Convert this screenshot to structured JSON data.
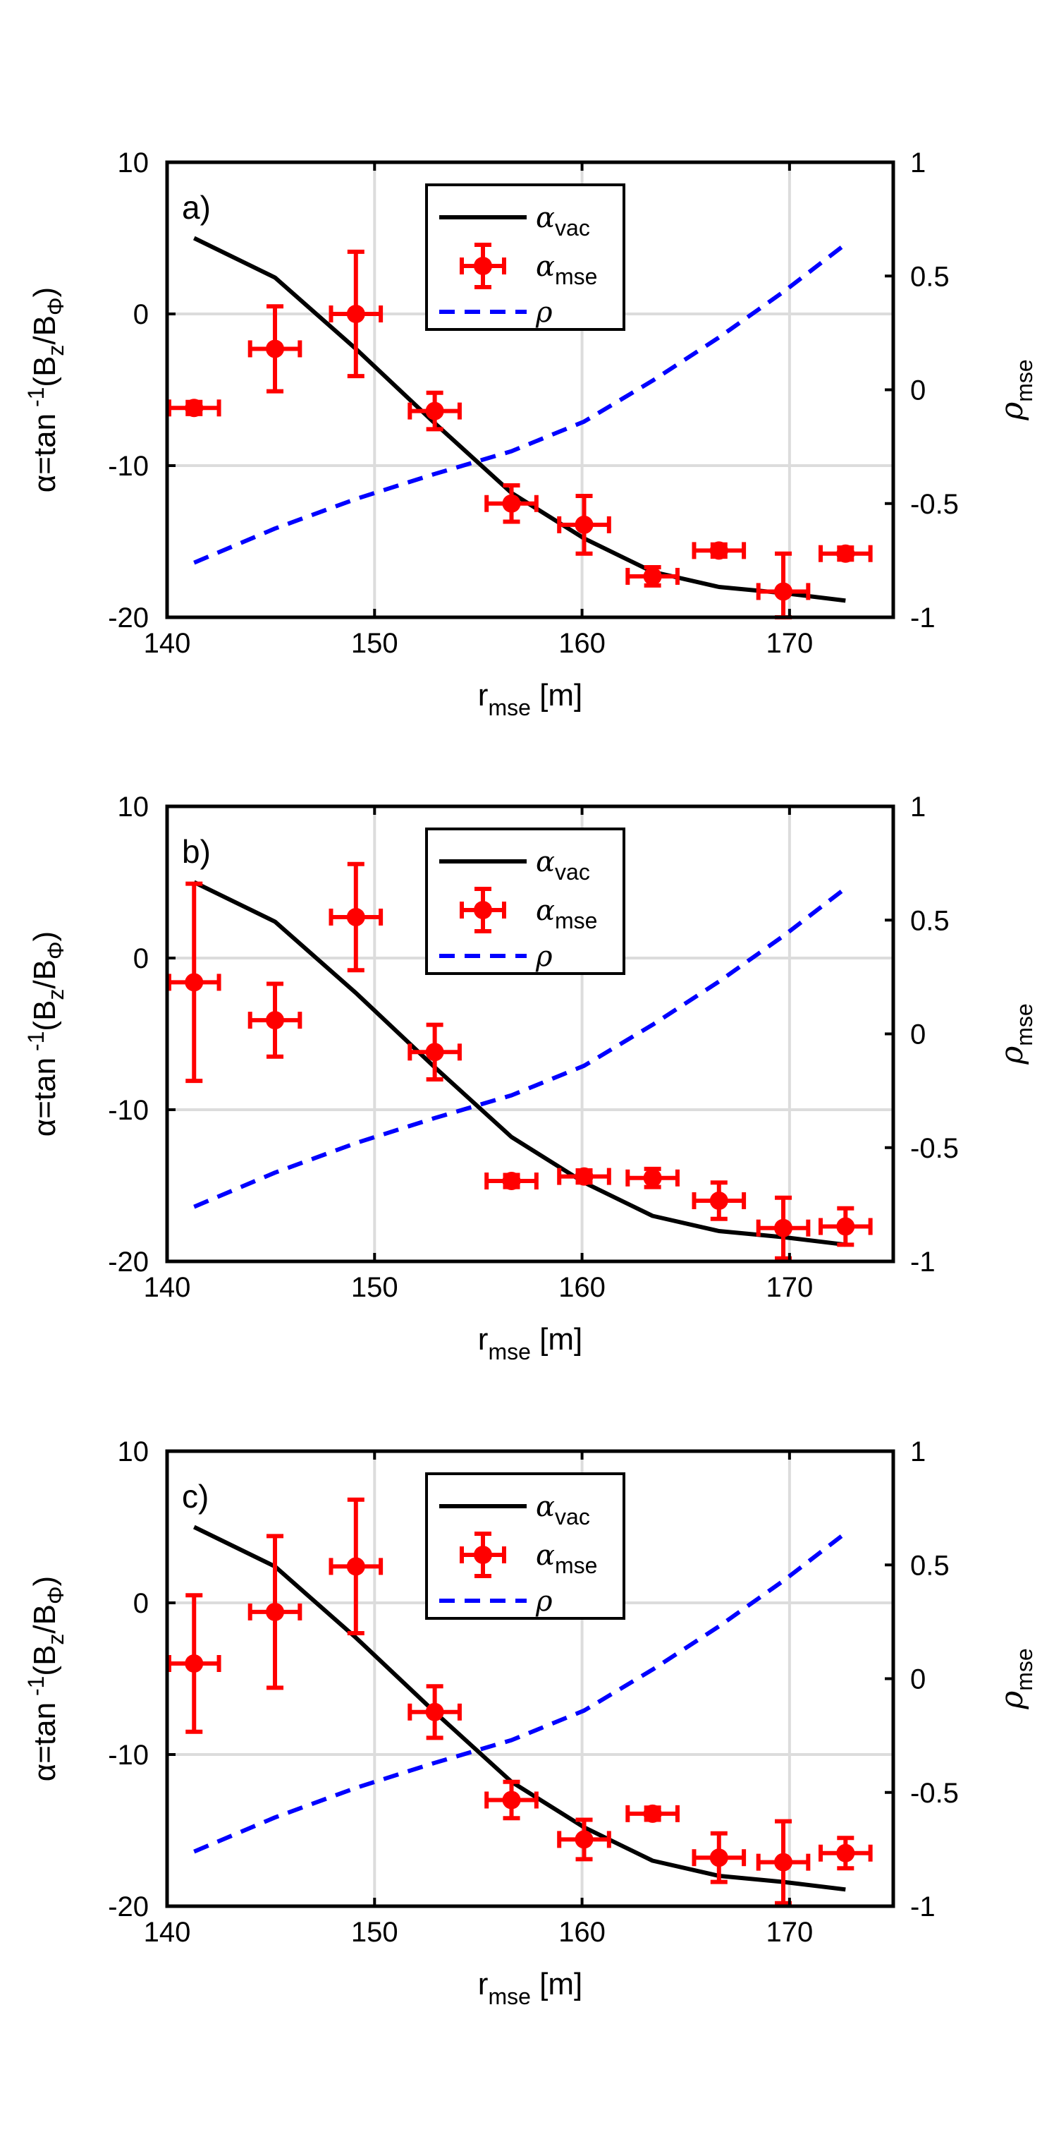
{
  "chart_data": [
    {
      "type": "line",
      "panel_label": "a)",
      "xlabel": {
        "base": "r",
        "sub": "mse",
        "unit": "[m]"
      },
      "ylabel_left": {
        "prefix": "α=tan",
        "exp": "-1",
        "open": "(B",
        "sub1": "z",
        "slash": "/B",
        "sub2": "Φ",
        "close": ")"
      },
      "ylabel_right": {
        "base": "ρ",
        "sub": "mse"
      },
      "xlim": [
        140,
        175
      ],
      "ylim_left": [
        -20,
        10
      ],
      "ylim_right": [
        -1,
        1
      ],
      "xticks": [
        140,
        150,
        160,
        170
      ],
      "yticks_left": [
        10,
        0,
        -10,
        -20
      ],
      "yticks_right": [
        "1",
        "0.5",
        "0",
        "-0.5",
        "-1"
      ],
      "grid": true,
      "legend": {
        "position": "top-center",
        "entries": [
          {
            "base": "α",
            "sub": "vac"
          },
          {
            "base": "α",
            "sub": "mse"
          },
          {
            "base": "ρ",
            "sub": ""
          }
        ]
      },
      "series": [
        {
          "name": "alpha_vac",
          "style": "solid",
          "color": "#000000",
          "axis": "left",
          "x": [
            141.3,
            145.2,
            149.1,
            152.9,
            156.6,
            160.1,
            163.4,
            166.6,
            169.7,
            172.7
          ],
          "y": [
            5.0,
            2.4,
            -2.3,
            -7.2,
            -11.8,
            -14.8,
            -17.0,
            -18.0,
            -18.4,
            -18.9
          ]
        },
        {
          "name": "alpha_mse",
          "style": "errorbar",
          "color": "#ff0000",
          "axis": "left",
          "x": [
            141.3,
            145.2,
            149.1,
            152.9,
            156.6,
            160.1,
            163.4,
            166.6,
            169.7,
            172.7
          ],
          "y": [
            -6.2,
            -2.3,
            0.0,
            -6.4,
            -12.5,
            -13.9,
            -17.3,
            -15.6,
            -18.3,
            -15.8
          ],
          "yerr": [
            0.4,
            2.8,
            4.1,
            1.2,
            1.2,
            1.9,
            0.6,
            0.4,
            2.5,
            0.4
          ],
          "xerr": 1.2
        },
        {
          "name": "rho",
          "style": "dashed",
          "color": "#0000ff",
          "axis": "right",
          "x": [
            141.3,
            145.2,
            149.1,
            152.9,
            156.6,
            160.1,
            163.4,
            166.6,
            169.7,
            172.7
          ],
          "y": [
            -0.76,
            -0.61,
            -0.48,
            -0.37,
            -0.27,
            -0.14,
            0.04,
            0.23,
            0.43,
            0.64
          ]
        }
      ]
    },
    {
      "type": "line",
      "panel_label": "b)",
      "xlabel": {
        "base": "r",
        "sub": "mse",
        "unit": "[m]"
      },
      "ylabel_left": {
        "prefix": "α=tan",
        "exp": "-1",
        "open": "(B",
        "sub1": "z",
        "slash": "/B",
        "sub2": "Φ",
        "close": ")"
      },
      "ylabel_right": {
        "base": "ρ",
        "sub": "mse"
      },
      "xlim": [
        140,
        175
      ],
      "ylim_left": [
        -20,
        10
      ],
      "ylim_right": [
        -1,
        1
      ],
      "xticks": [
        140,
        150,
        160,
        170
      ],
      "yticks_left": [
        10,
        0,
        -10,
        -20
      ],
      "yticks_right": [
        "1",
        "0.5",
        "0",
        "-0.5",
        "-1"
      ],
      "grid": true,
      "legend": {
        "position": "top-center",
        "entries": [
          {
            "base": "α",
            "sub": "vac"
          },
          {
            "base": "α",
            "sub": "mse"
          },
          {
            "base": "ρ",
            "sub": ""
          }
        ]
      },
      "series": [
        {
          "name": "alpha_vac",
          "style": "solid",
          "color": "#000000",
          "axis": "left",
          "x": [
            141.3,
            145.2,
            149.1,
            152.9,
            156.6,
            160.1,
            163.4,
            166.6,
            169.7,
            172.7
          ],
          "y": [
            5.0,
            2.4,
            -2.3,
            -7.2,
            -11.8,
            -14.8,
            -17.0,
            -18.0,
            -18.4,
            -18.9
          ]
        },
        {
          "name": "alpha_mse",
          "style": "errorbar",
          "color": "#ff0000",
          "axis": "left",
          "x": [
            141.3,
            145.2,
            149.1,
            152.9,
            156.6,
            160.1,
            163.4,
            166.6,
            169.7,
            172.7
          ],
          "y": [
            -1.6,
            -4.1,
            2.7,
            -6.2,
            -14.7,
            -14.4,
            -14.5,
            -16.0,
            -17.8,
            -17.7
          ],
          "yerr": [
            6.5,
            2.4,
            3.5,
            1.8,
            0.4,
            0.4,
            0.6,
            1.2,
            2.0,
            1.2
          ],
          "xerr": 1.2
        },
        {
          "name": "rho",
          "style": "dashed",
          "color": "#0000ff",
          "axis": "right",
          "x": [
            141.3,
            145.2,
            149.1,
            152.9,
            156.6,
            160.1,
            163.4,
            166.6,
            169.7,
            172.7
          ],
          "y": [
            -0.76,
            -0.61,
            -0.48,
            -0.37,
            -0.27,
            -0.14,
            0.04,
            0.23,
            0.43,
            0.64
          ]
        }
      ]
    },
    {
      "type": "line",
      "panel_label": "c)",
      "xlabel": {
        "base": "r",
        "sub": "mse",
        "unit": "[m]"
      },
      "ylabel_left": {
        "prefix": "α=tan",
        "exp": "-1",
        "open": "(B",
        "sub1": "z",
        "slash": "/B",
        "sub2": "Φ",
        "close": ")"
      },
      "ylabel_right": {
        "base": "ρ",
        "sub": "mse"
      },
      "xlim": [
        140,
        175
      ],
      "ylim_left": [
        -20,
        10
      ],
      "ylim_right": [
        -1,
        1
      ],
      "xticks": [
        140,
        150,
        160,
        170
      ],
      "yticks_left": [
        10,
        0,
        -10,
        -20
      ],
      "yticks_right": [
        "1",
        "0.5",
        "0",
        "-0.5",
        "-1"
      ],
      "grid": true,
      "legend": {
        "position": "top-center",
        "entries": [
          {
            "base": "α",
            "sub": "vac"
          },
          {
            "base": "α",
            "sub": "mse"
          },
          {
            "base": "ρ",
            "sub": ""
          }
        ]
      },
      "series": [
        {
          "name": "alpha_vac",
          "style": "solid",
          "color": "#000000",
          "axis": "left",
          "x": [
            141.3,
            145.2,
            149.1,
            152.9,
            156.6,
            160.1,
            163.4,
            166.6,
            169.7,
            172.7
          ],
          "y": [
            5.0,
            2.4,
            -2.3,
            -7.2,
            -11.8,
            -14.8,
            -17.0,
            -18.0,
            -18.4,
            -18.9
          ]
        },
        {
          "name": "alpha_mse",
          "style": "errorbar",
          "color": "#ff0000",
          "axis": "left",
          "x": [
            141.3,
            145.2,
            149.1,
            152.9,
            156.6,
            160.1,
            163.4,
            166.6,
            169.7,
            172.7
          ],
          "y": [
            -4.0,
            -0.6,
            2.4,
            -7.2,
            -13.0,
            -15.6,
            -13.9,
            -16.8,
            -17.1,
            -16.5
          ],
          "yerr": [
            4.5,
            5.0,
            4.4,
            1.7,
            1.2,
            1.3,
            0.4,
            1.6,
            2.7,
            1.0
          ],
          "xerr": 1.2
        },
        {
          "name": "rho",
          "style": "dashed",
          "color": "#0000ff",
          "axis": "right",
          "x": [
            141.3,
            145.2,
            149.1,
            152.9,
            156.6,
            160.1,
            163.4,
            166.6,
            169.7,
            172.7
          ],
          "y": [
            -0.76,
            -0.61,
            -0.48,
            -0.37,
            -0.27,
            -0.14,
            0.04,
            0.23,
            0.43,
            0.64
          ]
        }
      ]
    }
  ]
}
